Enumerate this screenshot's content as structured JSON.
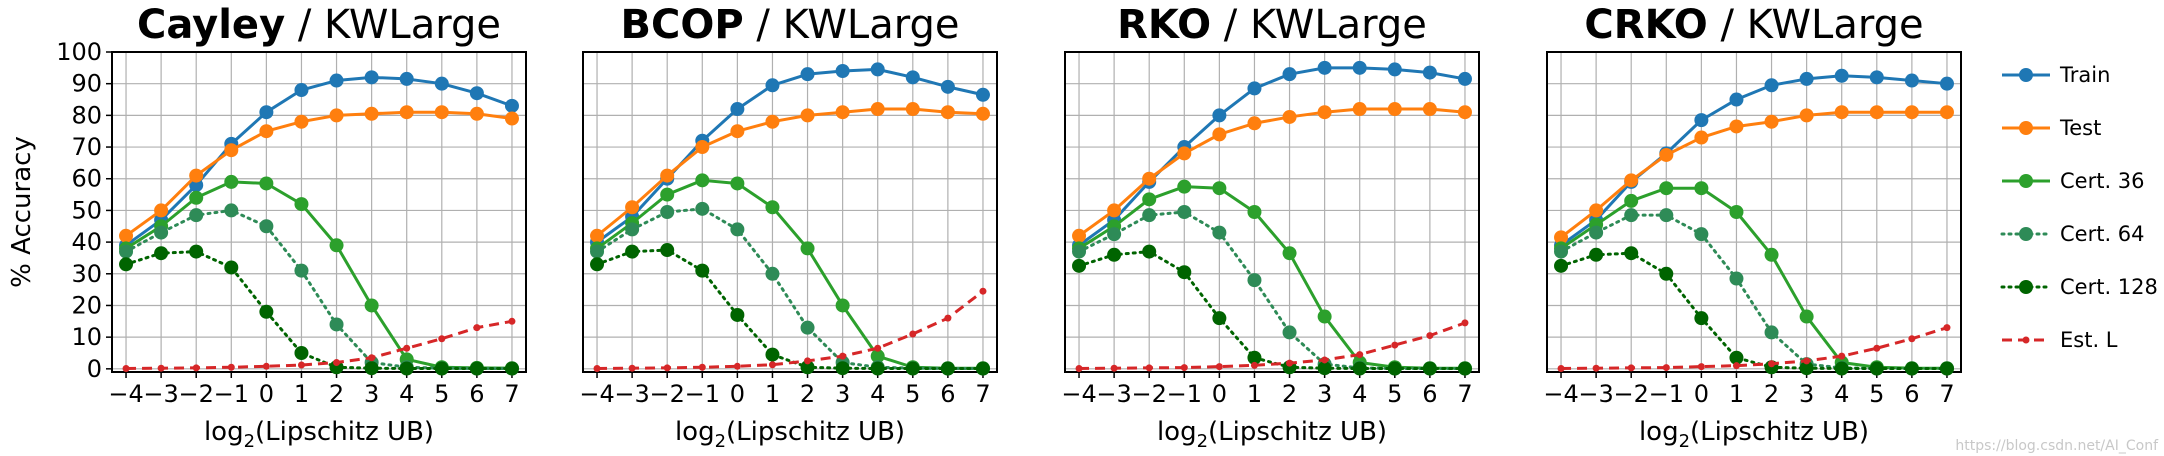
{
  "chart_data": [
    {
      "type": "line",
      "title_model": "Cayley",
      "title_dataset": " / KWLarge",
      "xlabel_prefix": "log",
      "xlabel_sub": "2",
      "xlabel_suffix": "(Lipschitz UB)",
      "ylabel": "% Accuracy",
      "x": [
        -4,
        -3,
        -2,
        -1,
        0,
        1,
        2,
        3,
        4,
        5,
        6,
        7
      ],
      "xlim": [
        -4.4,
        7.4
      ],
      "ylim": [
        -1,
        100
      ],
      "yticks": [
        0,
        10,
        20,
        30,
        40,
        50,
        60,
        70,
        80,
        90,
        100
      ],
      "grid": true,
      "series": [
        {
          "name": "Train",
          "values": [
            39,
            47,
            58,
            71,
            81,
            88,
            91,
            92,
            91.5,
            90,
            87,
            83
          ]
        },
        {
          "name": "Test",
          "values": [
            42,
            50,
            61,
            69,
            75,
            78,
            80,
            80.5,
            81,
            81,
            80.5,
            79
          ]
        },
        {
          "name": "Cert. 36",
          "values": [
            38,
            45,
            54,
            59,
            58.5,
            52,
            39,
            20,
            3,
            0.5,
            0.3,
            0.2
          ]
        },
        {
          "name": "Cert. 64",
          "values": [
            37,
            43,
            48.5,
            50,
            45,
            31,
            14,
            2,
            0.5,
            0.2,
            0.1,
            0.1
          ]
        },
        {
          "name": "Cert. 128",
          "values": [
            33,
            36.5,
            37,
            32,
            18,
            5,
            0.5,
            0.2,
            0.1,
            0.1,
            0.1,
            0.1
          ]
        },
        {
          "name": "Est. L",
          "values": [
            0.1,
            0.2,
            0.3,
            0.5,
            0.8,
            1.2,
            2,
            3.5,
            6.5,
            9.5,
            13,
            15
          ]
        }
      ]
    },
    {
      "type": "line",
      "title_model": "BCOP",
      "title_dataset": " / KWLarge",
      "xlabel_prefix": "log",
      "xlabel_sub": "2",
      "xlabel_suffix": "(Lipschitz UB)",
      "ylabel": "",
      "x": [
        -4,
        -3,
        -2,
        -1,
        0,
        1,
        2,
        3,
        4,
        5,
        6,
        7
      ],
      "xlim": [
        -4.4,
        7.4
      ],
      "ylim": [
        -1,
        100
      ],
      "yticks": [],
      "grid": true,
      "series": [
        {
          "name": "Train",
          "values": [
            40,
            48,
            60,
            72,
            82,
            89.5,
            93,
            94,
            94.5,
            92,
            89,
            86.5
          ]
        },
        {
          "name": "Test",
          "values": [
            42,
            51,
            61,
            70,
            75,
            78,
            80,
            81,
            82,
            82,
            81,
            80.5
          ]
        },
        {
          "name": "Cert. 36",
          "values": [
            38,
            46,
            55,
            59.5,
            58.5,
            51,
            38,
            20,
            4,
            0.5,
            0.2,
            0.2
          ]
        },
        {
          "name": "Cert. 64",
          "values": [
            37,
            44,
            49.5,
            50.5,
            44,
            30,
            13,
            2,
            0.5,
            0.2,
            0.1,
            0.1
          ]
        },
        {
          "name": "Cert. 128",
          "values": [
            33,
            37,
            37.5,
            31,
            17,
            4.5,
            0.5,
            0.2,
            0.1,
            0.1,
            0.1,
            0.1
          ]
        },
        {
          "name": "Est. L",
          "values": [
            0.1,
            0.2,
            0.3,
            0.5,
            0.8,
            1.3,
            2.5,
            4,
            6.5,
            11,
            16,
            24.5
          ]
        }
      ]
    },
    {
      "type": "line",
      "title_model": "RKO",
      "title_dataset": " / KWLarge",
      "xlabel_prefix": "log",
      "xlabel_sub": "2",
      "xlabel_suffix": "(Lipschitz UB)",
      "ylabel": "",
      "x": [
        -4,
        -3,
        -2,
        -1,
        0,
        1,
        2,
        3,
        4,
        5,
        6,
        7
      ],
      "xlim": [
        -4.4,
        7.4
      ],
      "ylim": [
        -1,
        100
      ],
      "yticks": [],
      "grid": true,
      "series": [
        {
          "name": "Train",
          "values": [
            39,
            47,
            59,
            70,
            80,
            88.5,
            93,
            95,
            95,
            94.5,
            93.5,
            91.5
          ]
        },
        {
          "name": "Test",
          "values": [
            42,
            50,
            60,
            68,
            74,
            77.5,
            79.5,
            81,
            82,
            82,
            82,
            81
          ]
        },
        {
          "name": "Cert. 36",
          "values": [
            38,
            45,
            53.5,
            57.5,
            57,
            49.5,
            36.5,
            16.5,
            2,
            0.5,
            0.2,
            0.2
          ]
        },
        {
          "name": "Cert. 64",
          "values": [
            37,
            42.5,
            48.5,
            49.5,
            43,
            28,
            11.5,
            1.5,
            0.3,
            0.1,
            0.1,
            0.1
          ]
        },
        {
          "name": "Cert. 128",
          "values": [
            32.5,
            36,
            37,
            30.5,
            16,
            3.5,
            0.5,
            0.2,
            0.1,
            0.1,
            0.1,
            0.1
          ]
        },
        {
          "name": "Est. L",
          "values": [
            0.1,
            0.2,
            0.3,
            0.4,
            0.7,
            1.1,
            1.8,
            2.8,
            4.5,
            7.5,
            10.5,
            14.5
          ]
        }
      ]
    },
    {
      "type": "line",
      "title_model": "CRKO",
      "title_dataset": " / KWLarge",
      "xlabel_prefix": "log",
      "xlabel_sub": "2",
      "xlabel_suffix": "(Lipschitz UB)",
      "ylabel": "",
      "x": [
        -4,
        -3,
        -2,
        -1,
        0,
        1,
        2,
        3,
        4,
        5,
        6,
        7
      ],
      "xlim": [
        -4.4,
        7.4
      ],
      "ylim": [
        -1,
        100
      ],
      "yticks": [],
      "grid": true,
      "series": [
        {
          "name": "Train",
          "values": [
            39,
            47,
            59,
            68,
            78.5,
            85,
            89.5,
            91.5,
            92.5,
            92,
            91,
            90
          ]
        },
        {
          "name": "Test",
          "values": [
            41.5,
            50,
            59.5,
            67.5,
            73,
            76.5,
            78,
            80,
            81,
            81,
            81,
            81
          ]
        },
        {
          "name": "Cert. 36",
          "values": [
            38,
            45.5,
            53,
            57,
            57,
            49.5,
            36,
            16.5,
            2,
            0.5,
            0.2,
            0.2
          ]
        },
        {
          "name": "Cert. 64",
          "values": [
            37,
            43,
            48.5,
            48.5,
            42.5,
            28.5,
            11.5,
            1.5,
            0.3,
            0.1,
            0.1,
            0.1
          ]
        },
        {
          "name": "Cert. 128",
          "values": [
            32.5,
            36,
            36.5,
            30,
            16,
            3.5,
            0.5,
            0.2,
            0.1,
            0.1,
            0.1,
            0.1
          ]
        },
        {
          "name": "Est. L",
          "values": [
            0.1,
            0.2,
            0.3,
            0.4,
            0.7,
            1,
            1.6,
            2.5,
            4,
            6.5,
            9.5,
            13
          ]
        }
      ]
    }
  ],
  "legend": {
    "placement": "right",
    "entries": [
      {
        "name": "Train",
        "color": "#1f77b4",
        "style": "solid"
      },
      {
        "name": "Test",
        "color": "#ff7f0e",
        "style": "solid"
      },
      {
        "name": "Cert. 36",
        "color": "#2ca02c",
        "style": "solid"
      },
      {
        "name": "Cert. 64",
        "color": "#2e8b57",
        "style": "dotted"
      },
      {
        "name": "Cert. 128",
        "color": "#006400",
        "style": "dotted"
      },
      {
        "name": "Est. L",
        "color": "#d62728",
        "style": "dashed"
      }
    ]
  },
  "watermark": "https://blog.csdn.net/AI_Conf"
}
